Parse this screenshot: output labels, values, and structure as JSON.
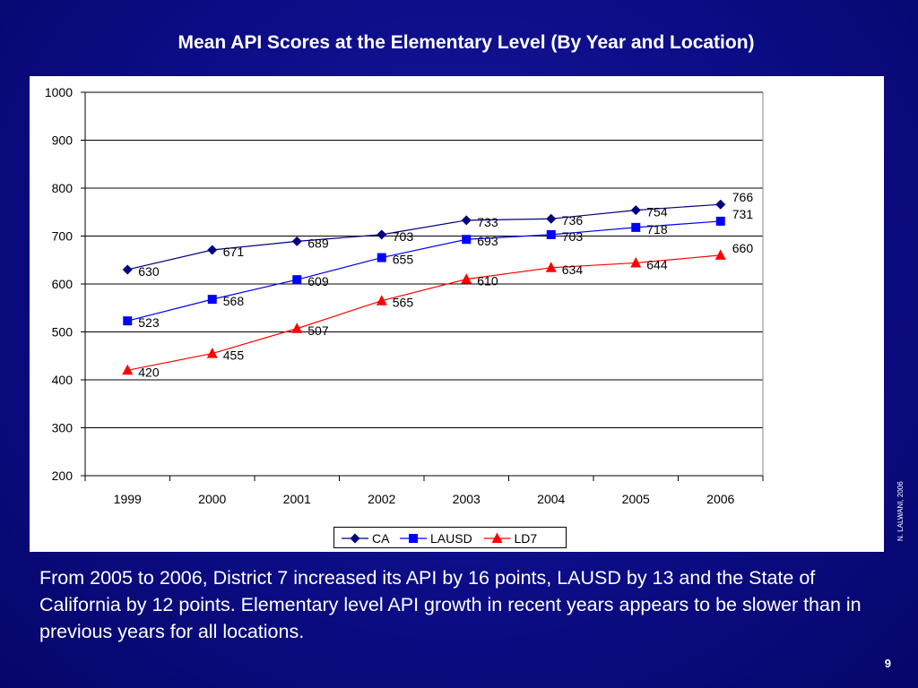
{
  "slide": {
    "title": "Mean API Scores at the Elementary Level (By Year and Location)",
    "caption": "From 2005 to 2006, District 7 increased its API by 16 points, LAUSD by 13 and the State of California by 12 points.  Elementary level API growth in recent years appears to be slower than in previous years for all locations.",
    "credit": "N. LALWANI, 2006",
    "page_number": "9",
    "background_color": "#0c0c86"
  },
  "chart_data": {
    "type": "line",
    "title": "",
    "xlabel": "",
    "ylabel": "",
    "categories": [
      "1999",
      "2000",
      "2001",
      "2002",
      "2003",
      "2004",
      "2005",
      "2006"
    ],
    "ylim": [
      200,
      1000
    ],
    "yticks": [
      200,
      300,
      400,
      500,
      600,
      700,
      800,
      900,
      1000
    ],
    "grid": true,
    "legend_position": "bottom",
    "series": [
      {
        "name": "CA",
        "values": [
          630,
          671,
          689,
          703,
          733,
          736,
          754,
          766
        ],
        "color": "#000080",
        "marker": "diamond"
      },
      {
        "name": "LAUSD",
        "values": [
          523,
          568,
          609,
          655,
          693,
          703,
          718,
          731
        ],
        "color": "#0000ff",
        "marker": "square"
      },
      {
        "name": "LD7",
        "values": [
          420,
          455,
          507,
          565,
          610,
          634,
          644,
          660
        ],
        "color": "#ff0000",
        "marker": "triangle"
      }
    ]
  }
}
